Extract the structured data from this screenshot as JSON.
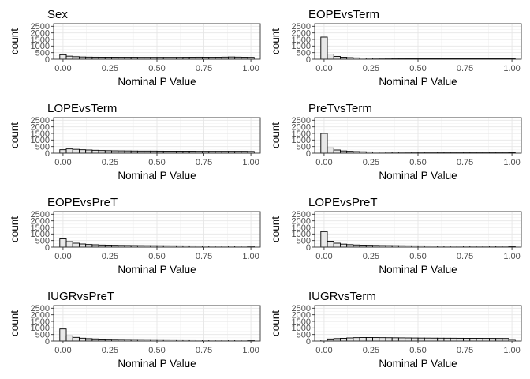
{
  "chart_data": [
    {
      "type": "bar",
      "title": "Sex",
      "xlabel": "Nominal P Value",
      "ylabel": "count",
      "xlim": [
        -0.05,
        1.05
      ],
      "ylim": [
        0,
        2700
      ],
      "xticks": [
        "0.00",
        "0.25",
        "0.50",
        "0.75",
        "1.00"
      ],
      "yticks": [
        "0",
        "500",
        "1000",
        "1500",
        "2000",
        "2500"
      ],
      "bin_width": 0.0345,
      "values": [
        340,
        230,
        190,
        170,
        160,
        155,
        150,
        150,
        150,
        145,
        145,
        145,
        140,
        140,
        140,
        140,
        140,
        140,
        140,
        145,
        150,
        155,
        150,
        145,
        150,
        160,
        170,
        160,
        150,
        140
      ]
    },
    {
      "type": "bar",
      "title": "EOPEvsTerm",
      "xlabel": "Nominal P Value",
      "ylabel": "count",
      "xlim": [
        -0.05,
        1.05
      ],
      "ylim": [
        0,
        2700
      ],
      "xticks": [
        "0.00",
        "0.25",
        "0.50",
        "0.75",
        "1.00"
      ],
      "yticks": [
        "0",
        "500",
        "1000",
        "1500",
        "2000",
        "2500"
      ],
      "bin_width": 0.0345,
      "values": [
        1680,
        390,
        210,
        150,
        120,
        100,
        90,
        80,
        75,
        70,
        65,
        60,
        58,
        55,
        55,
        55,
        55,
        52,
        52,
        52,
        52,
        52,
        52,
        52,
        52,
        52,
        52,
        52,
        52,
        40
      ]
    },
    {
      "type": "bar",
      "title": "LOPEvsTerm",
      "xlabel": "Nominal P Value",
      "ylabel": "count",
      "xlim": [
        -0.05,
        1.05
      ],
      "ylim": [
        0,
        2700
      ],
      "xticks": [
        "0.00",
        "0.25",
        "0.50",
        "0.75",
        "1.00"
      ],
      "yticks": [
        "0",
        "500",
        "1000",
        "1500",
        "2000",
        "2500"
      ],
      "bin_width": 0.0345,
      "values": [
        260,
        320,
        290,
        260,
        240,
        220,
        200,
        190,
        180,
        175,
        170,
        165,
        160,
        160,
        160,
        155,
        150,
        150,
        150,
        150,
        150,
        140,
        140,
        140,
        140,
        140,
        140,
        140,
        140,
        130
      ]
    },
    {
      "type": "bar",
      "title": "PreTvsTerm",
      "xlabel": "Nominal P Value",
      "ylabel": "count",
      "xlim": [
        -0.05,
        1.05
      ],
      "ylim": [
        0,
        2700
      ],
      "xticks": [
        "0.00",
        "0.25",
        "0.50",
        "0.75",
        "1.00"
      ],
      "yticks": [
        "0",
        "500",
        "1000",
        "1500",
        "2000",
        "2500"
      ],
      "bin_width": 0.0345,
      "values": [
        1500,
        400,
        240,
        170,
        140,
        120,
        105,
        95,
        90,
        85,
        80,
        78,
        75,
        72,
        70,
        70,
        68,
        68,
        66,
        66,
        65,
        65,
        64,
        64,
        64,
        64,
        63,
        63,
        63,
        50
      ]
    },
    {
      "type": "bar",
      "title": "EOPEvsPreT",
      "xlabel": "Nominal P Value",
      "ylabel": "count",
      "xlim": [
        -0.05,
        1.05
      ],
      "ylim": [
        0,
        2700
      ],
      "xticks": [
        "0.00",
        "0.25",
        "0.50",
        "0.75",
        "1.00"
      ],
      "yticks": [
        "0",
        "500",
        "1000",
        "1500",
        "2000",
        "2500"
      ],
      "bin_width": 0.0345,
      "values": [
        630,
        420,
        300,
        240,
        200,
        180,
        160,
        150,
        140,
        130,
        125,
        120,
        115,
        110,
        108,
        105,
        102,
        100,
        98,
        96,
        95,
        94,
        93,
        92,
        92,
        91,
        91,
        90,
        90,
        70
      ]
    },
    {
      "type": "bar",
      "title": "LOPEvsPreT",
      "xlabel": "Nominal P Value",
      "ylabel": "count",
      "xlim": [
        -0.05,
        1.05
      ],
      "ylim": [
        0,
        2700
      ],
      "xticks": [
        "0.00",
        "0.25",
        "0.50",
        "0.75",
        "1.00"
      ],
      "yticks": [
        "0",
        "500",
        "1000",
        "1500",
        "2000",
        "2500"
      ],
      "bin_width": 0.0345,
      "values": [
        1180,
        450,
        300,
        230,
        190,
        165,
        150,
        140,
        130,
        120,
        115,
        110,
        105,
        100,
        98,
        96,
        94,
        92,
        90,
        88,
        87,
        86,
        85,
        84,
        84,
        83,
        83,
        82,
        82,
        60
      ]
    },
    {
      "type": "bar",
      "title": "IUGRvsPreT",
      "xlabel": "Nominal P Value",
      "ylabel": "count",
      "xlim": [
        -0.05,
        1.05
      ],
      "ylim": [
        0,
        2700
      ],
      "xticks": [
        "0.00",
        "0.25",
        "0.50",
        "0.75",
        "1.00"
      ],
      "yticks": [
        "0",
        "500",
        "1000",
        "1500",
        "2000",
        "2500"
      ],
      "bin_width": 0.0345,
      "values": [
        920,
        400,
        280,
        220,
        185,
        165,
        150,
        140,
        132,
        126,
        120,
        115,
        112,
        108,
        105,
        102,
        100,
        98,
        96,
        95,
        94,
        93,
        92,
        91,
        90,
        90,
        89,
        89,
        88,
        65
      ]
    },
    {
      "type": "bar",
      "title": "IUGRvsTerm",
      "xlabel": "Nominal P Value",
      "ylabel": "count",
      "xlim": [
        -0.05,
        1.05
      ],
      "ylim": [
        0,
        2700
      ],
      "xticks": [
        "0.00",
        "0.25",
        "0.50",
        "0.75",
        "1.00"
      ],
      "yticks": [
        "0",
        "500",
        "1000",
        "1500",
        "2000",
        "2500"
      ],
      "bin_width": 0.0345,
      "values": [
        90,
        160,
        190,
        210,
        240,
        260,
        270,
        270,
        265,
        260,
        255,
        250,
        245,
        240,
        235,
        230,
        228,
        225,
        222,
        220,
        218,
        215,
        212,
        210,
        208,
        205,
        203,
        200,
        198,
        120
      ]
    }
  ]
}
